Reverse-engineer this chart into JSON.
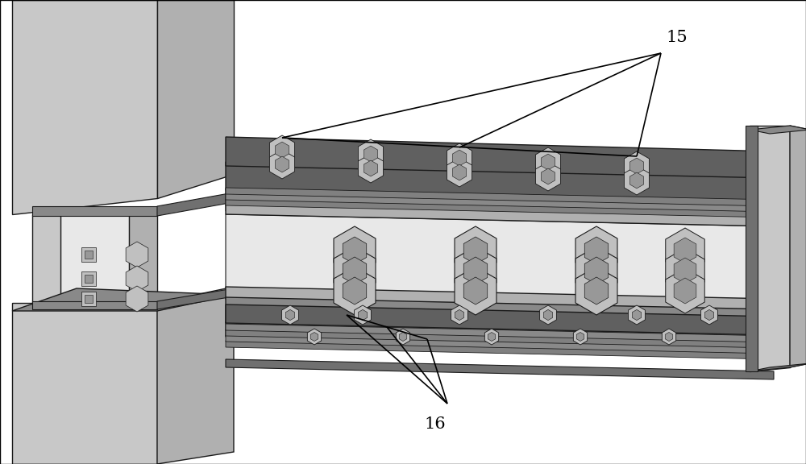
{
  "background_color": "#ffffff",
  "border_color": "#000000",
  "border_linewidth": 1.0,
  "label_15": "15",
  "label_16": "16",
  "label_fontsize": 15,
  "col_light": "#c8c8c8",
  "col_mid": "#b0b0b0",
  "col_dark": "#898989",
  "col_darker": "#707070",
  "col_darkest": "#505050",
  "col_white_bg": "#e8e8e8",
  "col_outline": "#1a1a1a",
  "col_bolt_light": "#c0c0c0",
  "col_bolt_mid": "#989898",
  "col_bolt_dark": "#787878",
  "col_plate_dark": "#606060",
  "col_plate_mid": "#808080",
  "annotation_color": "#000000",
  "annotation_linewidth": 1.2
}
